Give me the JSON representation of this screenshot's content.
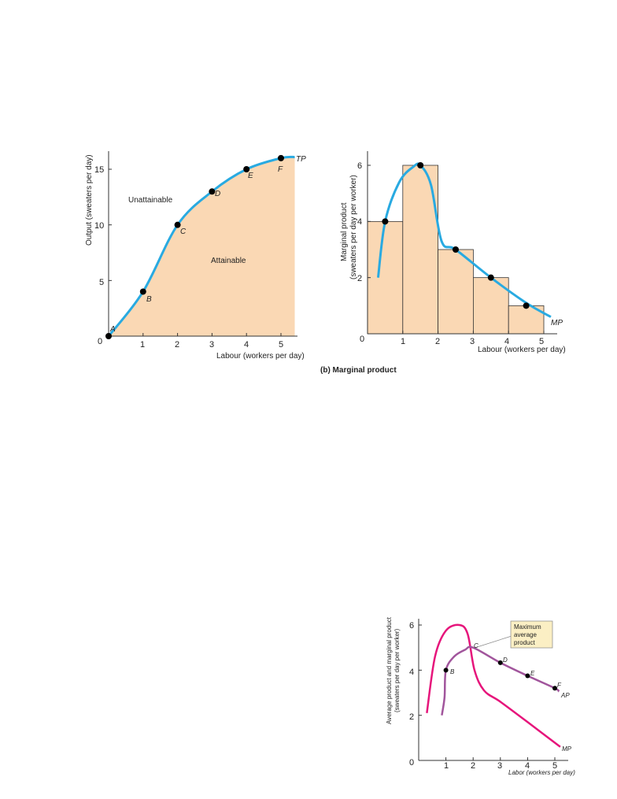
{
  "chart_data": [
    {
      "type": "line",
      "title": "",
      "xlabel": "Labour (workers per day)",
      "ylabel": "Output (sweaters per day)",
      "xlim": [
        0,
        5.4
      ],
      "ylim": [
        0,
        16
      ],
      "x_ticks": [
        "0",
        "1",
        "2",
        "3",
        "4",
        "5"
      ],
      "y_ticks": [
        "5",
        "10",
        "15"
      ],
      "series": [
        {
          "name": "TP",
          "x": [
            0,
            1,
            2,
            3,
            4,
            5,
            5.4
          ],
          "y": [
            0,
            4,
            10,
            13,
            15,
            16,
            16.1
          ]
        }
      ],
      "points": [
        {
          "label": "A",
          "x": 0,
          "y": 0
        },
        {
          "label": "B",
          "x": 1,
          "y": 4
        },
        {
          "label": "C",
          "x": 2,
          "y": 10
        },
        {
          "label": "D",
          "x": 3,
          "y": 13
        },
        {
          "label": "E",
          "x": 4,
          "y": 15
        },
        {
          "label": "F",
          "x": 5,
          "y": 16
        }
      ],
      "regions": [
        "Unattainable",
        "Attainable"
      ],
      "colors": {
        "curve": "#29aae1",
        "fill": "#fad8b4"
      }
    },
    {
      "type": "bar",
      "title": "(b) Marginal product",
      "xlabel": "Labour (workers per day)",
      "ylabel": "Marginal product (sweaters per day per worker)",
      "xlim": [
        0,
        5.4
      ],
      "ylim": [
        0,
        6.5
      ],
      "x_ticks": [
        "0",
        "1",
        "2",
        "3",
        "4",
        "5"
      ],
      "y_ticks": [
        "2",
        "4",
        "6"
      ],
      "bars": [
        {
          "x0": 0,
          "x1": 1,
          "value": 4
        },
        {
          "x0": 1,
          "x1": 2,
          "value": 6
        },
        {
          "x0": 2,
          "x1": 3,
          "value": 3
        },
        {
          "x0": 3,
          "x1": 4,
          "value": 2
        },
        {
          "x0": 4,
          "x1": 5,
          "value": 1
        }
      ],
      "series": [
        {
          "name": "MP",
          "x": [
            0.3,
            0.5,
            0.9,
            1.3,
            1.5,
            1.8,
            2.1,
            2.5,
            3.5,
            4.5,
            5.2
          ],
          "y": [
            2.0,
            4.0,
            5.4,
            5.95,
            6.0,
            5.3,
            3.3,
            3.0,
            2.0,
            1.1,
            0.6
          ]
        }
      ],
      "points": [
        {
          "x": 0.5,
          "y": 4
        },
        {
          "x": 1.5,
          "y": 6
        },
        {
          "x": 2.5,
          "y": 3
        },
        {
          "x": 3.5,
          "y": 2
        },
        {
          "x": 4.5,
          "y": 1
        }
      ],
      "colors": {
        "curve": "#29aae1",
        "bar": "#fad8b4",
        "bar_edge": "#333333"
      }
    },
    {
      "type": "line",
      "title": "",
      "xlabel": "Labor (workers per day)",
      "ylabel": "Average product and marginal product (sweaters per day per worker)",
      "xlim": [
        0,
        5.3
      ],
      "ylim": [
        0,
        6.5
      ],
      "x_ticks": [
        "0",
        "1",
        "2",
        "3",
        "4",
        "5"
      ],
      "y_ticks": [
        "2",
        "4",
        "6"
      ],
      "series": [
        {
          "name": "MP",
          "x": [
            0.3,
            0.6,
            1.0,
            1.5,
            1.8,
            2.05,
            2.4,
            3.0,
            4.0,
            5.2
          ],
          "y": [
            2.1,
            4.6,
            5.75,
            6.0,
            5.6,
            4.0,
            3.1,
            2.6,
            1.7,
            0.6
          ]
        },
        {
          "name": "AP",
          "x": [
            0.85,
            0.95,
            1.0,
            1.3,
            1.7,
            2.0,
            3.0,
            4.0,
            5.0,
            5.15
          ],
          "y": [
            2.0,
            2.8,
            4.0,
            4.6,
            4.9,
            5.0,
            4.33,
            3.75,
            3.2,
            3.05
          ]
        }
      ],
      "points": [
        {
          "label": "B",
          "x": 1,
          "y": 4
        },
        {
          "label": "C",
          "x": 2,
          "y": 5
        },
        {
          "label": "D",
          "x": 3,
          "y": 4.33
        },
        {
          "label": "E",
          "x": 4,
          "y": 3.75
        },
        {
          "label": "F",
          "x": 5,
          "y": 3.2
        }
      ],
      "annotation": "Maximum average product",
      "colors": {
        "mp": "#e6157b",
        "ap": "#a1559c",
        "callout_fill": "#fbefc4"
      }
    }
  ]
}
